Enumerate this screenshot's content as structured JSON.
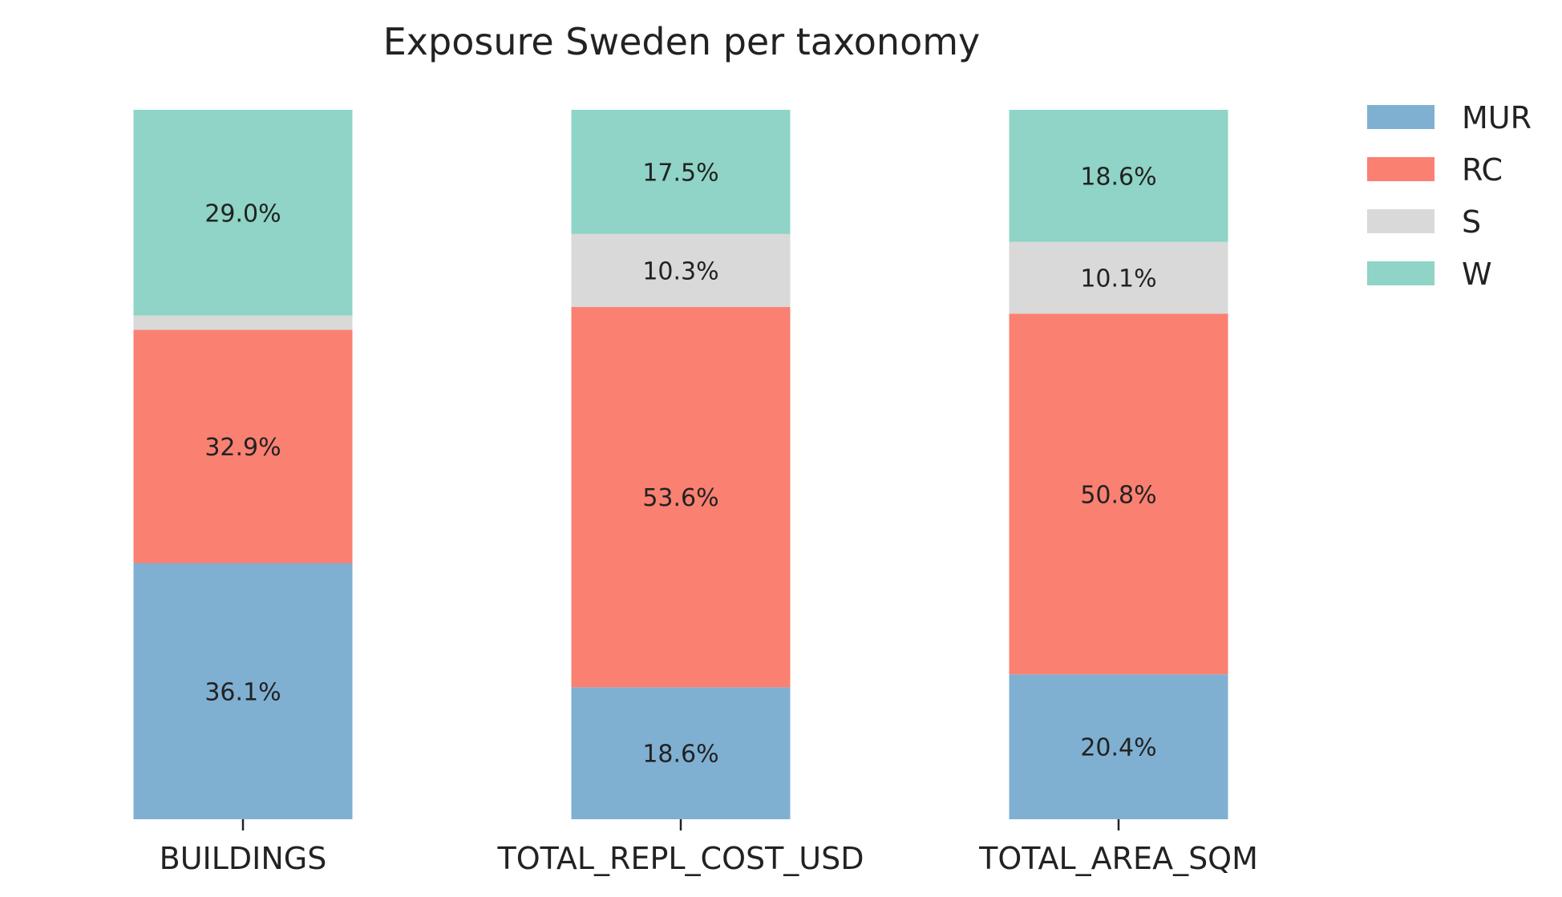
{
  "chart_data": {
    "type": "bar",
    "stacked": true,
    "normalized": true,
    "title": "Exposure Sweden per taxonomy",
    "xlabel": "",
    "ylabel": "",
    "ylim": [
      0,
      100
    ],
    "grid": false,
    "legend_position": "top-right",
    "categories": [
      "BUILDINGS",
      "TOTAL_REPL_COST_USD",
      "TOTAL_AREA_SQM"
    ],
    "series": [
      {
        "name": "MUR",
        "color": "#7fb0d2",
        "values": [
          36.1,
          18.6,
          20.4
        ],
        "labels": [
          "36.1%",
          "18.6%",
          "20.4%"
        ]
      },
      {
        "name": "RC",
        "color": "#fa8072",
        "values": [
          32.9,
          53.6,
          50.8
        ],
        "labels": [
          "32.9%",
          "53.6%",
          "50.8%"
        ]
      },
      {
        "name": "S",
        "color": "#d9d9d9",
        "values": [
          2.0,
          10.3,
          10.1
        ],
        "labels": [
          "",
          "10.3%",
          "10.1%"
        ]
      },
      {
        "name": "W",
        "color": "#8fd4c6",
        "values": [
          29.0,
          17.5,
          18.6
        ],
        "labels": [
          "29.0%",
          "17.5%",
          "18.6%"
        ]
      }
    ]
  }
}
